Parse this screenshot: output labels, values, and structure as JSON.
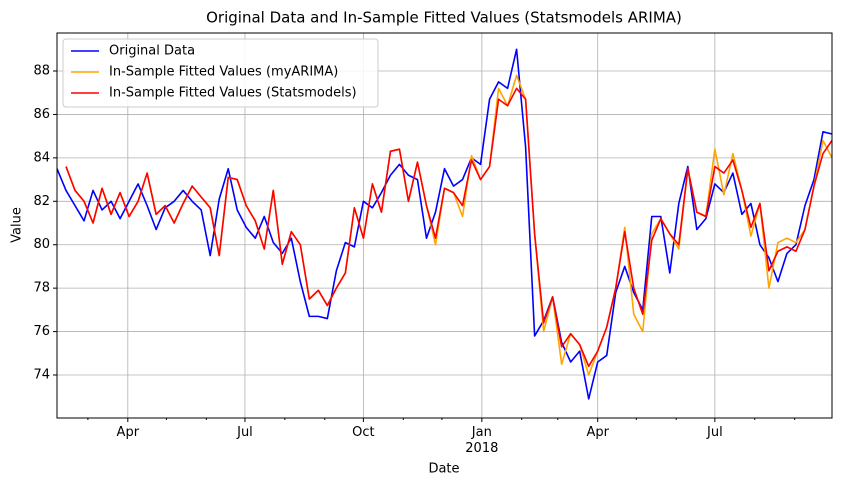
{
  "chart_data": {
    "type": "line",
    "title": "Original Data and In-Sample Fitted Values (Statsmodels ARIMA)",
    "x_label": "Date",
    "y_label": "Value",
    "x": [
      "2017-02-05",
      "2017-02-12",
      "2017-02-19",
      "2017-02-26",
      "2017-03-05",
      "2017-03-12",
      "2017-03-19",
      "2017-03-26",
      "2017-04-02",
      "2017-04-09",
      "2017-04-16",
      "2017-04-23",
      "2017-04-30",
      "2017-05-07",
      "2017-05-14",
      "2017-05-21",
      "2017-05-28",
      "2017-06-04",
      "2017-06-11",
      "2017-06-18",
      "2017-06-25",
      "2017-07-02",
      "2017-07-09",
      "2017-07-16",
      "2017-07-23",
      "2017-07-30",
      "2017-08-06",
      "2017-08-13",
      "2017-08-20",
      "2017-08-27",
      "2017-09-03",
      "2017-09-10",
      "2017-09-17",
      "2017-09-24",
      "2017-10-01",
      "2017-10-08",
      "2017-10-15",
      "2017-10-22",
      "2017-10-29",
      "2017-11-05",
      "2017-11-12",
      "2017-11-19",
      "2017-11-26",
      "2017-12-03",
      "2017-12-10",
      "2017-12-17",
      "2017-12-24",
      "2017-12-31",
      "2018-01-07",
      "2018-01-14",
      "2018-01-21",
      "2018-01-28",
      "2018-02-04",
      "2018-02-11",
      "2018-02-18",
      "2018-02-25",
      "2018-03-04",
      "2018-03-11",
      "2018-03-18",
      "2018-03-25",
      "2018-04-01",
      "2018-04-08",
      "2018-04-15",
      "2018-04-22",
      "2018-04-29",
      "2018-05-06",
      "2018-05-13",
      "2018-05-20",
      "2018-05-27",
      "2018-06-03",
      "2018-06-10",
      "2018-06-17",
      "2018-06-24",
      "2018-07-01",
      "2018-07-08",
      "2018-07-15",
      "2018-07-22",
      "2018-07-29",
      "2018-08-05",
      "2018-08-12",
      "2018-08-19",
      "2018-08-26",
      "2018-09-02",
      "2018-09-09",
      "2018-09-16",
      "2018-09-23",
      "2018-09-30"
    ],
    "series": [
      {
        "name": "Original Data",
        "color": "#0000ff",
        "values": [
          83.5,
          82.5,
          81.8,
          81.1,
          82.5,
          81.6,
          82.0,
          81.2,
          82.0,
          82.8,
          81.8,
          80.7,
          81.7,
          82.0,
          82.5,
          82.0,
          81.6,
          79.5,
          82.1,
          83.5,
          81.6,
          80.8,
          80.3,
          81.3,
          80.1,
          79.6,
          80.3,
          78.3,
          76.7,
          76.7,
          76.6,
          78.8,
          80.1,
          79.9,
          82.0,
          81.7,
          82.4,
          83.2,
          83.7,
          83.2,
          83.0,
          80.3,
          81.5,
          83.5,
          82.7,
          83.0,
          84.0,
          83.7,
          86.7,
          87.5,
          87.2,
          89.0,
          84.5,
          75.8,
          76.5,
          77.6,
          75.5,
          74.6,
          75.1,
          72.9,
          74.6,
          74.9,
          77.8,
          79.0,
          77.8,
          77.0,
          81.3,
          81.3,
          78.7,
          81.9,
          83.6,
          80.7,
          81.2,
          82.8,
          82.4,
          83.3,
          81.4,
          81.9,
          80.0,
          79.4,
          78.3,
          79.6,
          80.0,
          81.8,
          83.0,
          85.2,
          85.1
        ]
      },
      {
        "name": "In-Sample Fitted Values (myARIMA)",
        "color": "#ffa500",
        "values": [
          null,
          83.6,
          82.5,
          82.0,
          81.0,
          82.6,
          81.4,
          82.4,
          81.3,
          82.0,
          83.3,
          81.4,
          81.8,
          81.0,
          81.9,
          82.7,
          82.2,
          81.7,
          79.5,
          83.1,
          83.0,
          81.8,
          81.1,
          79.8,
          82.5,
          79.1,
          80.6,
          80.0,
          77.5,
          77.9,
          77.2,
          78.0,
          78.7,
          81.7,
          80.3,
          82.8,
          81.5,
          84.3,
          84.4,
          82.0,
          83.8,
          81.8,
          80.0,
          82.6,
          82.4,
          81.3,
          84.1,
          83.0,
          83.6,
          87.2,
          86.4,
          87.8,
          86.7,
          80.5,
          76.0,
          77.6,
          74.5,
          75.9,
          75.4,
          74.0,
          75.1,
          76.2,
          78.0,
          80.8,
          76.8,
          76.0,
          80.5,
          81.2,
          80.5,
          79.8,
          83.5,
          81.5,
          81.3,
          84.4,
          82.3,
          84.2,
          82.5,
          80.4,
          81.9,
          78.0,
          80.1,
          80.3,
          80.1,
          80.7,
          82.7,
          84.8,
          84.0
        ]
      },
      {
        "name": "In-Sample Fitted Values (Statsmodels)",
        "color": "#ff0000",
        "values": [
          null,
          83.6,
          82.5,
          82.0,
          81.0,
          82.6,
          81.4,
          82.4,
          81.3,
          82.0,
          83.3,
          81.4,
          81.8,
          81.0,
          81.9,
          82.7,
          82.2,
          81.7,
          79.5,
          83.1,
          83.0,
          81.8,
          81.1,
          79.8,
          82.5,
          79.1,
          80.6,
          80.0,
          77.5,
          77.9,
          77.2,
          78.0,
          78.7,
          81.7,
          80.3,
          82.8,
          81.5,
          84.3,
          84.4,
          82.0,
          83.8,
          81.8,
          80.3,
          82.6,
          82.4,
          81.8,
          83.9,
          83.0,
          83.6,
          86.7,
          86.4,
          87.2,
          86.7,
          80.5,
          76.4,
          77.6,
          75.3,
          75.9,
          75.4,
          74.4,
          75.1,
          76.2,
          78.0,
          80.6,
          78.0,
          76.8,
          80.2,
          81.2,
          80.5,
          80.0,
          83.5,
          81.5,
          81.3,
          83.6,
          83.3,
          83.9,
          82.5,
          80.8,
          81.9,
          78.8,
          79.7,
          79.9,
          79.7,
          80.7,
          82.7,
          84.2,
          84.8
        ]
      }
    ],
    "xlim": [
      "2017-02-05",
      "2018-09-30"
    ],
    "xticks": [
      {
        "value": "2017-04-01",
        "label": "Apr"
      },
      {
        "value": "2017-07-01",
        "label": "Jul"
      },
      {
        "value": "2017-10-01",
        "label": "Oct"
      },
      {
        "value": "2018-01-01",
        "label": "Jan\n2018"
      },
      {
        "value": "2018-04-01",
        "label": "Apr"
      },
      {
        "value": "2018-07-01",
        "label": "Jul"
      }
    ],
    "xminorticks": [
      "2017-03-01",
      "2017-05-01",
      "2017-06-01",
      "2017-08-01",
      "2017-09-01",
      "2017-11-01",
      "2017-12-01",
      "2018-02-01",
      "2018-03-01",
      "2018-05-01",
      "2018-06-01",
      "2018-08-01",
      "2018-09-01"
    ],
    "ylim": [
      72.02,
      89.75
    ],
    "yticks": [
      74,
      76,
      78,
      80,
      82,
      84,
      86,
      88
    ],
    "grid": true,
    "legend": "upper left"
  }
}
